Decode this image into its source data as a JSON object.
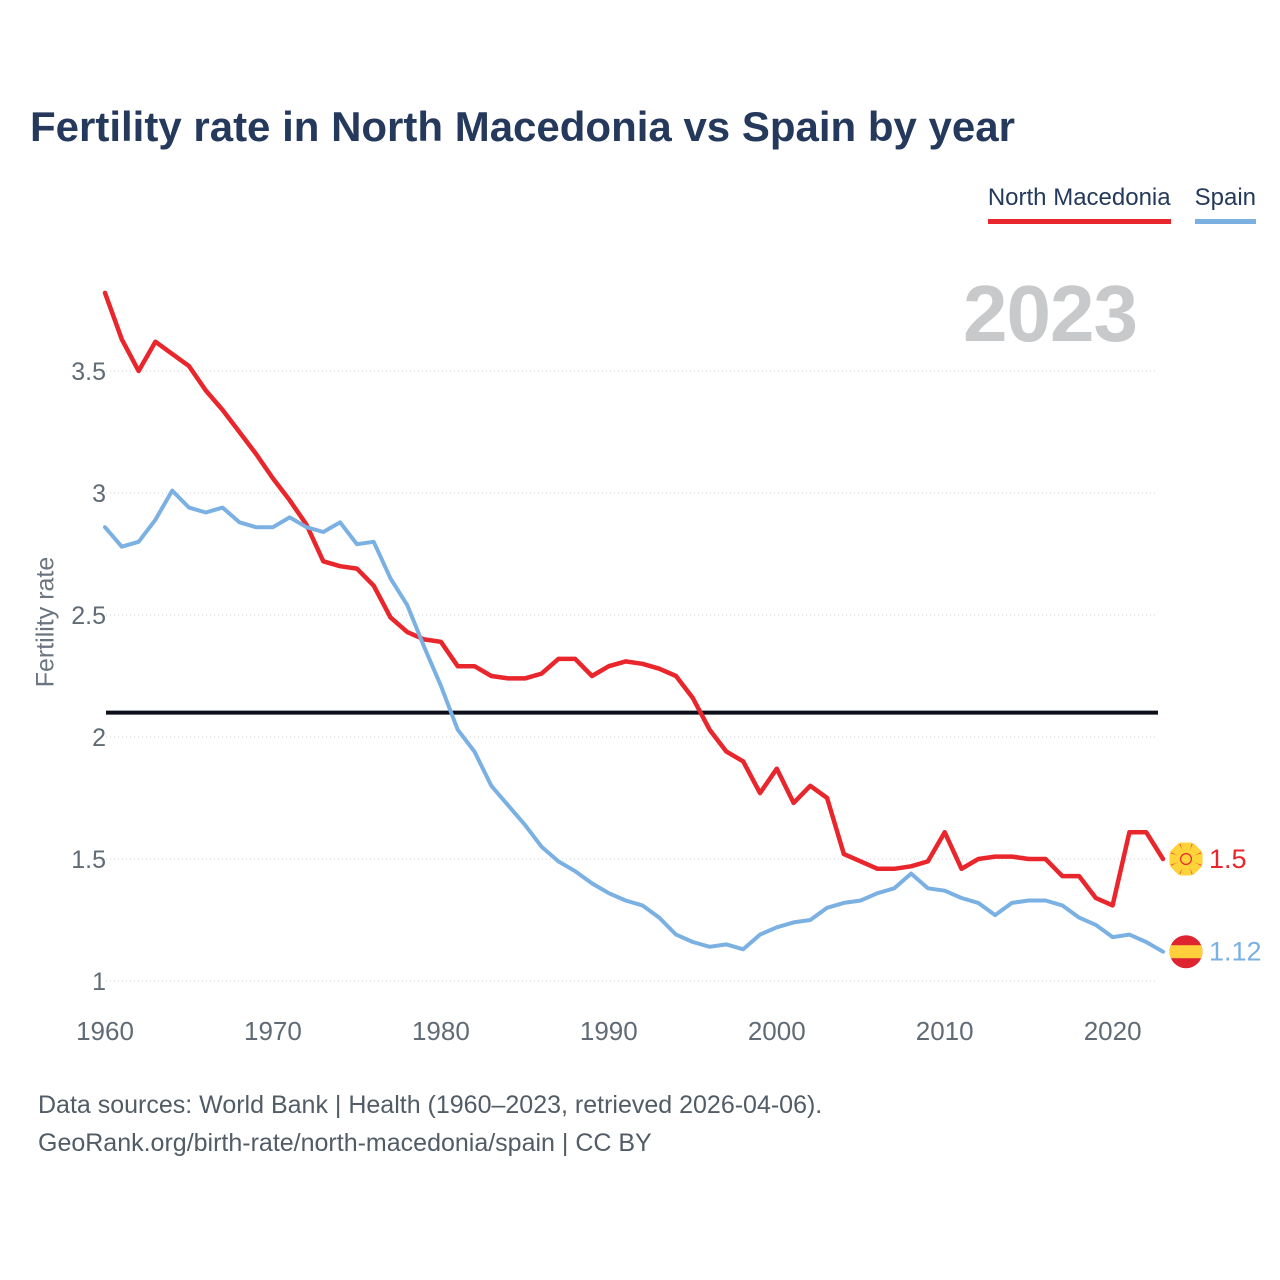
{
  "title": "Fertility rate in North Macedonia vs Spain by year",
  "watermark": "2023",
  "y_axis_title": "Fertility rate",
  "legend": {
    "items": [
      {
        "label": "North Macedonia",
        "color": "#e8262c"
      },
      {
        "label": "Spain",
        "color": "#7ab0e2"
      }
    ]
  },
  "footer": {
    "line1": "Data sources: World Bank | Health (1960–2023, retrieved 2026-04-06).",
    "line2": "GeoRank.org/birth-rate/north-macedonia/spain | CC BY"
  },
  "icons": {
    "north_macedonia_flag": {
      "name": "north-macedonia-flag-icon",
      "red": "#e8232b",
      "yellow": "#ffd43b"
    },
    "spain_flag": {
      "name": "spain-flag-icon",
      "red": "#dd2430",
      "yellow": "#ffd03c"
    }
  },
  "chart_data": {
    "type": "line",
    "title": "Fertility rate in North Macedonia vs Spain by year",
    "xlabel": "",
    "ylabel": "Fertility rate",
    "x_start": 1960,
    "x_end": 2023,
    "ylim": [
      1.0,
      3.82
    ],
    "grid": true,
    "legend_position": "top-right",
    "reference_line": {
      "value": 2.1,
      "color": "#0b0f1a"
    },
    "x_ticks": [
      {
        "v": 1960,
        "label": "1960"
      },
      {
        "v": 1970,
        "label": "1970"
      },
      {
        "v": 1980,
        "label": "1980"
      },
      {
        "v": 1990,
        "label": "1990"
      },
      {
        "v": 2000,
        "label": "2000"
      },
      {
        "v": 2010,
        "label": "2010"
      },
      {
        "v": 2020,
        "label": "2020"
      }
    ],
    "y_ticks": [
      {
        "v": 1,
        "label": "1"
      },
      {
        "v": 1.5,
        "label": "1.5"
      },
      {
        "v": 2,
        "label": "2"
      },
      {
        "v": 2.5,
        "label": "2.5"
      },
      {
        "v": 3,
        "label": "3"
      },
      {
        "v": 3.5,
        "label": "3.5"
      }
    ],
    "years": [
      1960,
      1961,
      1962,
      1963,
      1964,
      1965,
      1966,
      1967,
      1968,
      1969,
      1970,
      1971,
      1972,
      1973,
      1974,
      1975,
      1976,
      1977,
      1978,
      1979,
      1980,
      1981,
      1982,
      1983,
      1984,
      1985,
      1986,
      1987,
      1988,
      1989,
      1990,
      1991,
      1992,
      1993,
      1994,
      1995,
      1996,
      1997,
      1998,
      1999,
      2000,
      2001,
      2002,
      2003,
      2004,
      2005,
      2006,
      2007,
      2008,
      2009,
      2010,
      2011,
      2012,
      2013,
      2014,
      2015,
      2016,
      2017,
      2018,
      2019,
      2020,
      2021,
      2022,
      2023
    ],
    "series": [
      {
        "name": "North Macedonia",
        "color": "#e8262c",
        "flag": "north_macedonia_flag",
        "end_label": "1.5",
        "values": [
          3.82,
          3.63,
          3.5,
          3.62,
          3.57,
          3.52,
          3.42,
          3.34,
          3.25,
          3.16,
          3.06,
          2.97,
          2.87,
          2.72,
          2.7,
          2.69,
          2.62,
          2.49,
          2.43,
          2.4,
          2.39,
          2.29,
          2.29,
          2.25,
          2.24,
          2.24,
          2.26,
          2.32,
          2.32,
          2.25,
          2.29,
          2.31,
          2.3,
          2.28,
          2.25,
          2.16,
          2.03,
          1.94,
          1.9,
          1.77,
          1.87,
          1.73,
          1.8,
          1.75,
          1.52,
          1.49,
          1.46,
          1.46,
          1.47,
          1.49,
          1.61,
          1.46,
          1.5,
          1.51,
          1.51,
          1.5,
          1.5,
          1.43,
          1.43,
          1.34,
          1.31,
          1.61,
          1.61,
          1.5
        ]
      },
      {
        "name": "Spain",
        "color": "#7ab0e2",
        "flag": "spain_flag",
        "end_label": "1.12",
        "values": [
          2.86,
          2.78,
          2.8,
          2.89,
          3.01,
          2.94,
          2.92,
          2.94,
          2.88,
          2.86,
          2.86,
          2.9,
          2.86,
          2.84,
          2.88,
          2.79,
          2.8,
          2.65,
          2.54,
          2.37,
          2.21,
          2.03,
          1.94,
          1.8,
          1.72,
          1.64,
          1.55,
          1.49,
          1.45,
          1.4,
          1.36,
          1.33,
          1.31,
          1.26,
          1.19,
          1.16,
          1.14,
          1.15,
          1.13,
          1.19,
          1.22,
          1.24,
          1.25,
          1.3,
          1.32,
          1.33,
          1.36,
          1.38,
          1.44,
          1.38,
          1.37,
          1.34,
          1.32,
          1.27,
          1.32,
          1.33,
          1.33,
          1.31,
          1.26,
          1.23,
          1.18,
          1.19,
          1.16,
          1.12
        ]
      }
    ]
  }
}
